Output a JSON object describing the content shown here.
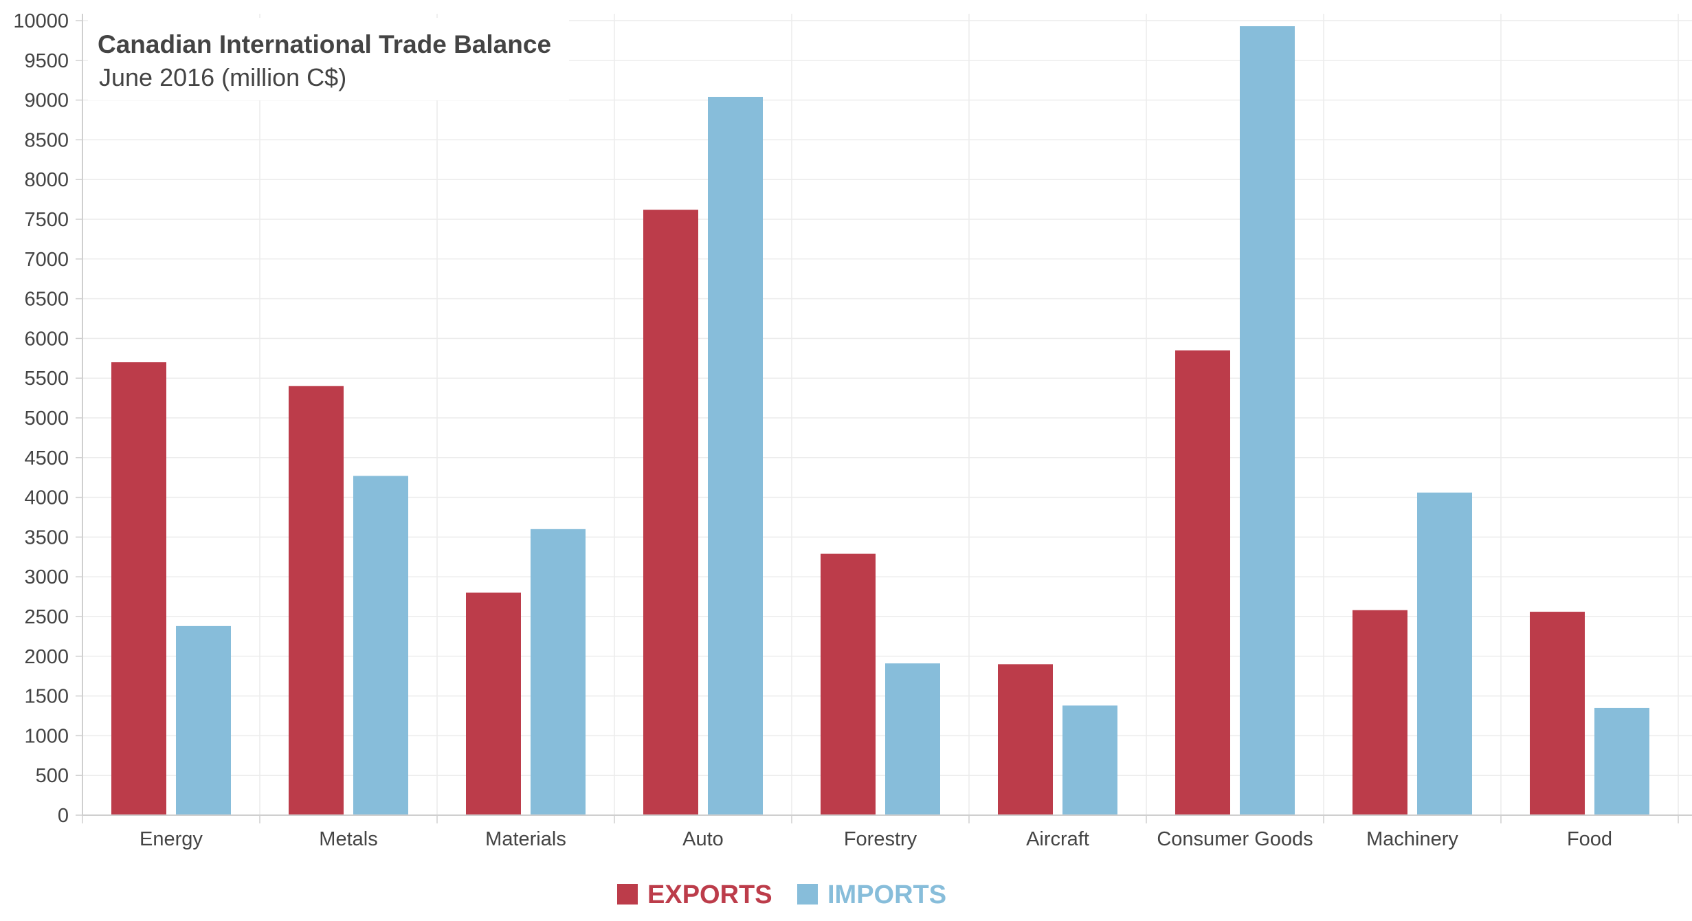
{
  "colors": {
    "exports": "#bc3c4a",
    "imports": "#87bdda",
    "grid": "#ececec",
    "axis": "#cfcfcf",
    "text": "#444444"
  },
  "chart_data": {
    "type": "bar",
    "title": "Canadian International Trade Balance",
    "subtitle": "June 2016 (million C$)",
    "xlabel": "",
    "ylabel": "",
    "ylim": [
      0,
      10000
    ],
    "ytick_step": 500,
    "yticks": [
      "0",
      "500",
      "1000",
      "1500",
      "2000",
      "2500",
      "3000",
      "3500",
      "4000",
      "4500",
      "5000",
      "5500",
      "6000",
      "6500",
      "7000",
      "7500",
      "8000",
      "8500",
      "9000",
      "9500",
      "10000"
    ],
    "categories": [
      "Energy",
      "Metals",
      "Materials",
      "Auto",
      "Forestry",
      "Aircraft",
      "Consumer Goods",
      "Machinery",
      "Food"
    ],
    "series": [
      {
        "name": "EXPORTS",
        "color": "#bc3c4a",
        "values": [
          5700,
          5400,
          2800,
          7620,
          3290,
          1900,
          5850,
          2580,
          2560
        ]
      },
      {
        "name": "IMPORTS",
        "color": "#87bdda",
        "values": [
          2380,
          4270,
          3600,
          9040,
          1910,
          1380,
          9930,
          4060,
          1350
        ]
      }
    ],
    "grid": true,
    "legend_position": "bottom-center"
  }
}
